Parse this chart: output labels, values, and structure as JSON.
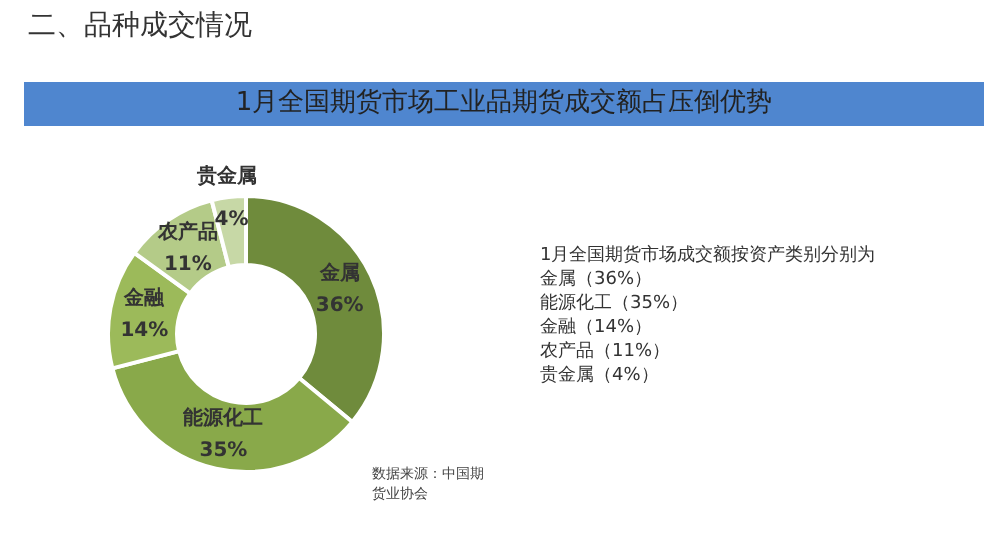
{
  "chart_data": {
    "type": "donut",
    "subtitle": "二、品种成交情况",
    "title": "1月全国期货市场工业品期货成交额占压倒优势",
    "categories": [
      "金属",
      "能源化工",
      "金融",
      "农产品",
      "贵金属"
    ],
    "values": [
      36,
      35,
      14,
      11,
      4
    ],
    "colors": [
      "#6f8b3c",
      "#89a94a",
      "#9cba5a",
      "#b4cb88",
      "#c7d8a6"
    ],
    "value_labels": [
      "36%",
      "35%",
      "14%",
      "11%",
      "4%"
    ],
    "annotations": [
      "1月全国期货市场成交额按资产类别分别为",
      "金属（36%）",
      "能源化工（35%）",
      "金融（14%）",
      "农产品（11%）",
      "贵金属（4%）",
      "数据来源：中国期货业协会"
    ]
  }
}
